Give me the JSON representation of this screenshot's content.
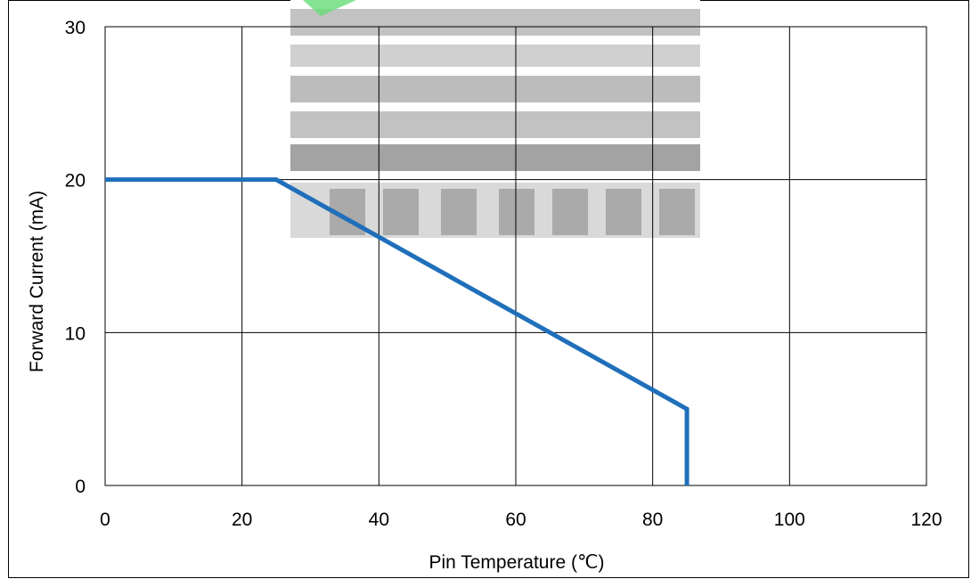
{
  "chart_data": {
    "type": "line",
    "title": "",
    "xlabel": "Pin Temperature (℃)",
    "ylabel": "Forward Current (mA)",
    "xlim": [
      0,
      120
    ],
    "ylim": [
      0,
      30
    ],
    "xticks": [
      0,
      20,
      40,
      60,
      80,
      100,
      120
    ],
    "yticks": [
      0,
      10,
      20,
      30
    ],
    "grid": true,
    "legend": "none",
    "series": [
      {
        "color": "#1f6fba",
        "x": [
          0,
          25,
          85,
          85
        ],
        "y": [
          20,
          20,
          5,
          0
        ]
      }
    ]
  },
  "watermark": {
    "colors": [
      "#9e9e9e",
      "#66dd77"
    ]
  }
}
